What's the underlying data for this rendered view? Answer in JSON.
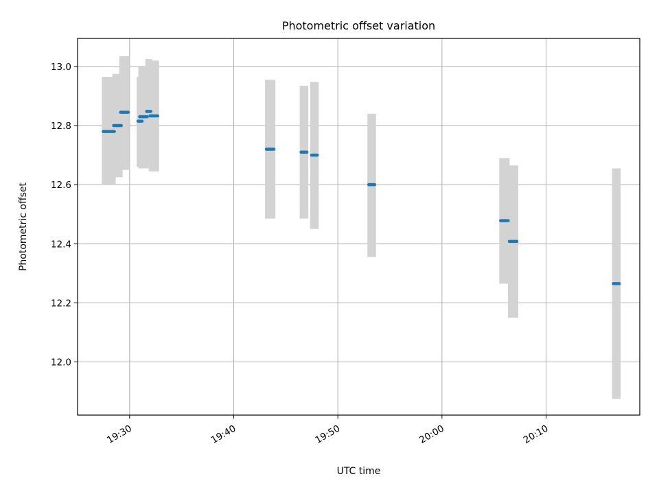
{
  "chart_data": {
    "type": "scatter",
    "title": "Photometric offset variation",
    "xlabel": "UTC time",
    "ylabel": "Photometric offset",
    "x_range": [
      "19:25:00",
      "20:19:00"
    ],
    "ylim": [
      11.82,
      13.095
    ],
    "x_ticks": [
      "19:30",
      "19:40",
      "19:50",
      "20:00",
      "20:10"
    ],
    "y_ticks": [
      "12.0",
      "12.2",
      "12.4",
      "12.6",
      "12.8",
      "13.0"
    ],
    "grid": true,
    "errorbar_color": "#d3d3d3",
    "marker_color": "#1f77b4",
    "points": [
      {
        "x": "19:27:40",
        "x_end": "19:28:20",
        "y": 12.78,
        "y_low": 12.6,
        "y_high": 12.965
      },
      {
        "x": "19:28:40",
        "x_end": "19:29:00",
        "y": 12.8,
        "y_low": 12.625,
        "y_high": 12.975
      },
      {
        "x": "19:29:20",
        "x_end": "19:29:40",
        "y": 12.845,
        "y_low": 12.65,
        "y_high": 13.035
      },
      {
        "x": "19:31:00",
        "x_end": "19:31:00",
        "y": 12.815,
        "y_low": 12.66,
        "y_high": 12.965
      },
      {
        "x": "19:31:10",
        "x_end": "19:31:30",
        "y": 12.83,
        "y_low": 12.655,
        "y_high": 13.0
      },
      {
        "x": "19:31:50",
        "x_end": "19:31:50",
        "y": 12.848,
        "y_low": 12.67,
        "y_high": 13.025
      },
      {
        "x": "19:32:10",
        "x_end": "19:32:30",
        "y": 12.833,
        "y_low": 12.645,
        "y_high": 13.02
      },
      {
        "x": "19:43:20",
        "x_end": "19:43:40",
        "y": 12.72,
        "y_low": 12.485,
        "y_high": 12.955
      },
      {
        "x": "19:46:40",
        "x_end": "19:46:50",
        "y": 12.71,
        "y_low": 12.485,
        "y_high": 12.935
      },
      {
        "x": "19:47:40",
        "x_end": "19:47:50",
        "y": 12.7,
        "y_low": 12.45,
        "y_high": 12.948
      },
      {
        "x": "19:53:10",
        "x_end": "19:53:20",
        "y": 12.6,
        "y_low": 12.355,
        "y_high": 12.84
      },
      {
        "x": "20:05:50",
        "x_end": "20:06:10",
        "y": 12.478,
        "y_low": 12.265,
        "y_high": 12.69
      },
      {
        "x": "20:06:40",
        "x_end": "20:07:00",
        "y": 12.408,
        "y_low": 12.15,
        "y_high": 12.665
      },
      {
        "x": "20:16:40",
        "x_end": "20:16:50",
        "y": 12.265,
        "y_low": 11.875,
        "y_high": 12.655
      }
    ]
  }
}
